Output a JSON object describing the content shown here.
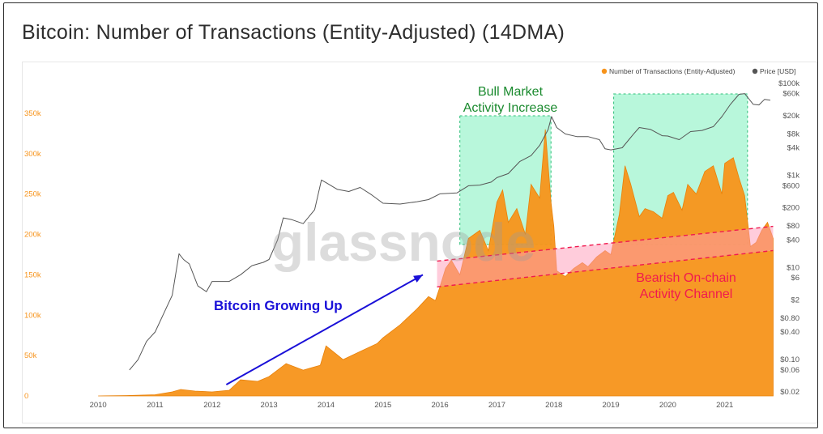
{
  "title": "Bitcoin: Number of Transactions (Entity-Adjusted) (14DMA)",
  "watermark": "glassnode",
  "colors": {
    "transactions": "#f7931a",
    "price": "#555555",
    "bull_fill": "#7df0bd",
    "bear_fill": "#ff9ab8",
    "bull_text": "#1a8a2e",
    "bear_text": "#f0194f",
    "arrow": "#1a10d8"
  },
  "chart_data": {
    "type": "area",
    "title": "Bitcoin: Number of Transactions (Entity-Adjusted) (14DMA)",
    "legend": {
      "placement": "top-right",
      "entries": [
        "Number of Transactions (Entity-Adjusted)",
        "Price [USD]"
      ]
    },
    "x_ticks": [
      "2010",
      "2011",
      "2012",
      "2013",
      "2014",
      "2015",
      "2016",
      "2017",
      "2018",
      "2019",
      "2020",
      "2021"
    ],
    "x_range": [
      2009.5,
      2021.9
    ],
    "y_left": {
      "ticks": [
        "0",
        "50k",
        "100k",
        "150k",
        "200k",
        "250k",
        "300k",
        "350k"
      ],
      "tick_values": [
        0,
        50000,
        100000,
        150000,
        200000,
        250000,
        300000,
        350000
      ],
      "range": [
        0,
        390000
      ]
    },
    "y_right": {
      "scale": "log",
      "ticks": [
        "$0.02",
        "$0.06",
        "$0.10",
        "$0.40",
        "$0.80",
        "$2",
        "$6",
        "$10",
        "$40",
        "$80",
        "$200",
        "$600",
        "$1k",
        "$4k",
        "$8k",
        "$20k",
        "$60k",
        "$100k"
      ],
      "tick_values": [
        0.02,
        0.06,
        0.1,
        0.4,
        0.8,
        2,
        6,
        10,
        40,
        80,
        200,
        600,
        1000,
        4000,
        8000,
        20000,
        60000,
        100000
      ]
    },
    "grid": false,
    "series": [
      {
        "name": "Number of Transactions (Entity-Adjusted)",
        "axis": "left",
        "type": "area",
        "x": [
          2010.0,
          2010.5,
          2011.0,
          2011.3,
          2011.45,
          2011.7,
          2012.0,
          2012.3,
          2012.5,
          2012.8,
          2013.0,
          2013.3,
          2013.6,
          2013.9,
          2014.0,
          2014.3,
          2014.6,
          2014.9,
          2015.0,
          2015.3,
          2015.6,
          2015.8,
          2015.92,
          2016.0,
          2016.1,
          2016.2,
          2016.35,
          2016.5,
          2016.7,
          2016.85,
          2017.0,
          2017.1,
          2017.2,
          2017.35,
          2017.5,
          2017.6,
          2017.75,
          2017.85,
          2017.95,
          2018.0,
          2018.05,
          2018.2,
          2018.35,
          2018.5,
          2018.6,
          2018.75,
          2018.9,
          2019.0,
          2019.15,
          2019.25,
          2019.35,
          2019.5,
          2019.6,
          2019.75,
          2019.9,
          2020.0,
          2020.1,
          2020.25,
          2020.35,
          2020.5,
          2020.65,
          2020.8,
          2020.95,
          2021.0,
          2021.15,
          2021.25,
          2021.35,
          2021.45,
          2021.55,
          2021.65,
          2021.75,
          2021.85
        ],
        "values": [
          0,
          500,
          1500,
          5000,
          8000,
          6000,
          5000,
          7000,
          20000,
          18000,
          24000,
          40000,
          32000,
          38000,
          62000,
          45000,
          55000,
          65000,
          72000,
          88000,
          108000,
          123000,
          118000,
          135000,
          158000,
          168000,
          150000,
          195000,
          205000,
          180000,
          240000,
          255000,
          215000,
          232000,
          200000,
          262000,
          245000,
          330000,
          240000,
          210000,
          155000,
          148000,
          158000,
          165000,
          160000,
          172000,
          180000,
          175000,
          225000,
          285000,
          262000,
          222000,
          232000,
          228000,
          220000,
          248000,
          252000,
          230000,
          262000,
          250000,
          278000,
          285000,
          250000,
          288000,
          295000,
          270000,
          248000,
          185000,
          190000,
          205000,
          215000,
          195000
        ]
      },
      {
        "name": "Price [USD]",
        "axis": "right",
        "type": "line",
        "x": [
          2010.55,
          2010.7,
          2010.85,
          2011.0,
          2011.15,
          2011.3,
          2011.42,
          2011.5,
          2011.6,
          2011.75,
          2011.9,
          2012.0,
          2012.3,
          2012.5,
          2012.7,
          2012.9,
          2013.0,
          2013.15,
          2013.25,
          2013.4,
          2013.6,
          2013.8,
          2013.92,
          2014.0,
          2014.2,
          2014.4,
          2014.6,
          2014.8,
          2015.0,
          2015.3,
          2015.6,
          2015.8,
          2016.0,
          2016.3,
          2016.5,
          2016.7,
          2016.9,
          2017.0,
          2017.2,
          2017.4,
          2017.6,
          2017.75,
          2017.9,
          2017.96,
          2018.05,
          2018.2,
          2018.4,
          2018.6,
          2018.8,
          2018.9,
          2019.0,
          2019.2,
          2019.4,
          2019.5,
          2019.7,
          2019.9,
          2020.0,
          2020.2,
          2020.4,
          2020.6,
          2020.8,
          2020.95,
          2021.1,
          2021.25,
          2021.35,
          2021.5,
          2021.6,
          2021.7,
          2021.8
        ],
        "values": [
          0.06,
          0.1,
          0.25,
          0.4,
          1,
          2.5,
          20,
          15,
          12,
          4,
          3,
          5,
          5,
          7,
          11,
          13,
          15,
          40,
          120,
          110,
          90,
          180,
          800,
          700,
          500,
          450,
          550,
          380,
          250,
          240,
          270,
          300,
          400,
          420,
          600,
          620,
          720,
          900,
          1100,
          2000,
          2700,
          4500,
          10000,
          19000,
          11000,
          8000,
          7000,
          7000,
          6000,
          3800,
          3600,
          4000,
          8000,
          11000,
          10000,
          7300,
          7200,
          6000,
          9000,
          9500,
          11500,
          19000,
          35000,
          58000,
          60000,
          35000,
          34000,
          45000,
          43000
        ]
      }
    ],
    "annotations": {
      "bull_label": [
        "Bull Market",
        "Activity Increase"
      ],
      "bear_label": [
        "Bearish On-chain",
        "Activity Channel"
      ],
      "growth_label": "Bitcoin Growing Up",
      "bull_regions": [
        [
          2016.35,
          2017.95
        ],
        [
          2019.05,
          2021.4
        ]
      ],
      "bear_channel": {
        "x": [
          2015.95,
          2021.85
        ],
        "upper": [
          167000,
          210000
        ],
        "lower": [
          135000,
          180000
        ]
      },
      "growth_arrow": {
        "from": [
          2012.25,
          14000
        ],
        "to": [
          2015.7,
          150000
        ]
      }
    }
  }
}
